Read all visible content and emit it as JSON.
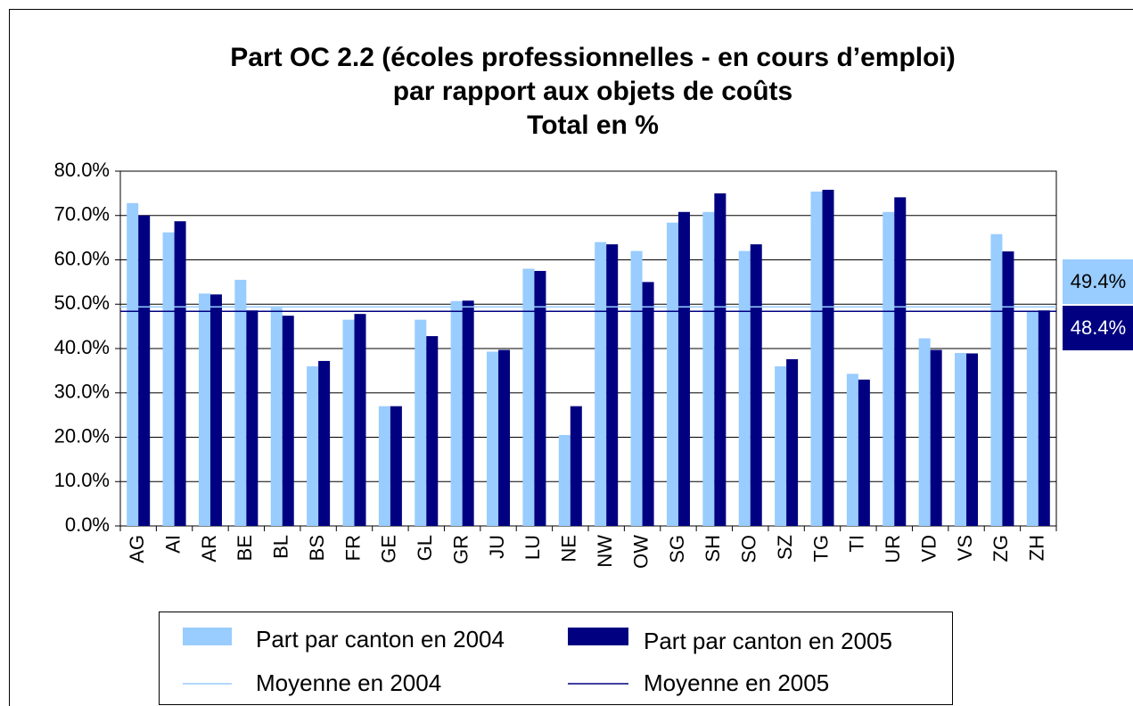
{
  "chart_data": {
    "type": "bar",
    "title": "Part OC 2.2 (écoles professionnelles - en cours d’emploi)",
    "subtitle": "par rapport aux objets de coûts",
    "subtitle2": "Total en %",
    "categories": [
      "AG",
      "AI",
      "AR",
      "BE",
      "BL",
      "BS",
      "FR",
      "GE",
      "GL",
      "GR",
      "JU",
      "LU",
      "NE",
      "NW",
      "OW",
      "SG",
      "SH",
      "SO",
      "SZ",
      "TG",
      "TI",
      "UR",
      "VD",
      "VS",
      "ZG",
      "ZH"
    ],
    "series": [
      {
        "name": "Part par canton en 2004",
        "color": "#99ccff",
        "values": [
          72.8,
          66.2,
          52.4,
          55.5,
          49.2,
          36.0,
          46.5,
          27.0,
          46.5,
          50.7,
          39.3,
          58.0,
          20.5,
          64.0,
          62.0,
          68.4,
          70.8,
          62.0,
          36.0,
          75.4,
          34.3,
          70.8,
          42.3,
          39.0,
          65.8,
          48.4
        ]
      },
      {
        "name": "Part par canton en 2005",
        "color": "#000080",
        "values": [
          70.0,
          68.7,
          52.2,
          48.6,
          47.4,
          37.2,
          47.8,
          27.0,
          42.8,
          50.8,
          39.7,
          57.5,
          27.0,
          63.5,
          55.0,
          70.8,
          75.0,
          63.5,
          37.6,
          75.8,
          33.0,
          74.1,
          39.7,
          38.9,
          61.9,
          48.6
        ]
      }
    ],
    "averages": [
      {
        "name": "Moyenne en 2004",
        "color": "#99ccff",
        "value": 49.4,
        "value_label": "49.4%"
      },
      {
        "name": "Moyenne en 2005",
        "color": "#000080",
        "value": 48.4,
        "value_label": "48.4%"
      }
    ],
    "ylim": [
      0,
      80
    ],
    "yticks": [
      {
        "value": 0,
        "label": "0.0%"
      },
      {
        "value": 10,
        "label": "10.0%"
      },
      {
        "value": 20,
        "label": "20.0%"
      },
      {
        "value": 30,
        "label": "30.0%"
      },
      {
        "value": 40,
        "label": "40.0%"
      },
      {
        "value": 50,
        "label": "50.0%"
      },
      {
        "value": 60,
        "label": "60.0%"
      },
      {
        "value": 70,
        "label": "70.0%"
      },
      {
        "value": 80,
        "label": "80.0%"
      }
    ],
    "grid": true
  }
}
